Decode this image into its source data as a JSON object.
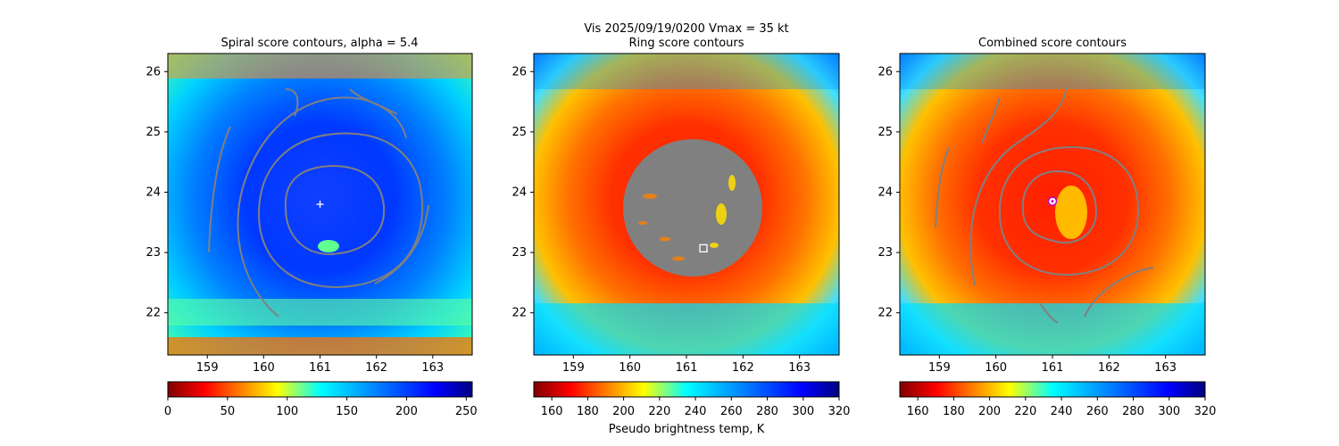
{
  "suptitle": "Vis  2025/09/19/0200    Vmax = 35 kt",
  "panels": [
    {
      "title": "Spiral score contours, alpha =  5.4",
      "colormap": "jet-reversed",
      "colorbar": {
        "ticks": [
          "0",
          "50",
          "100",
          "150",
          "200",
          "250"
        ],
        "range": [
          0,
          255
        ],
        "label": ""
      },
      "marker": {
        "type": "plus",
        "color": "#ffffff",
        "lon": 161.0,
        "lat": 23.8
      }
    },
    {
      "title": "Ring score contours",
      "colormap": "jet-reversed",
      "colorbar": {
        "ticks": [
          "160",
          "180",
          "200",
          "220",
          "240",
          "260",
          "280",
          "300",
          "320"
        ],
        "range": [
          150,
          320
        ],
        "label": "Pseudo brightness temp, K"
      },
      "marker": {
        "type": "square",
        "color": "#ffffff",
        "lon": 161.3,
        "lat": 23.07
      }
    },
    {
      "title": "Combined score contours",
      "colormap": "jet-reversed",
      "colorbar": {
        "ticks": [
          "160",
          "180",
          "200",
          "220",
          "240",
          "260",
          "280",
          "300",
          "320"
        ],
        "range": [
          150,
          320
        ],
        "label": ""
      },
      "marker": {
        "type": "circle",
        "color": "#c000c0",
        "lon": 161.0,
        "lat": 23.85
      }
    }
  ],
  "chart_data": {
    "type": "heatmap",
    "x_ticks": [
      "159",
      "160",
      "161",
      "162",
      "163"
    ],
    "y_ticks": [
      "22",
      "23",
      "24",
      "25",
      "26"
    ],
    "xlim": [
      158.3,
      163.7
    ],
    "ylim": [
      21.3,
      26.3
    ],
    "storm_center": {
      "lon": 161.0,
      "lat": 23.8
    },
    "contour_color": "#808080"
  }
}
